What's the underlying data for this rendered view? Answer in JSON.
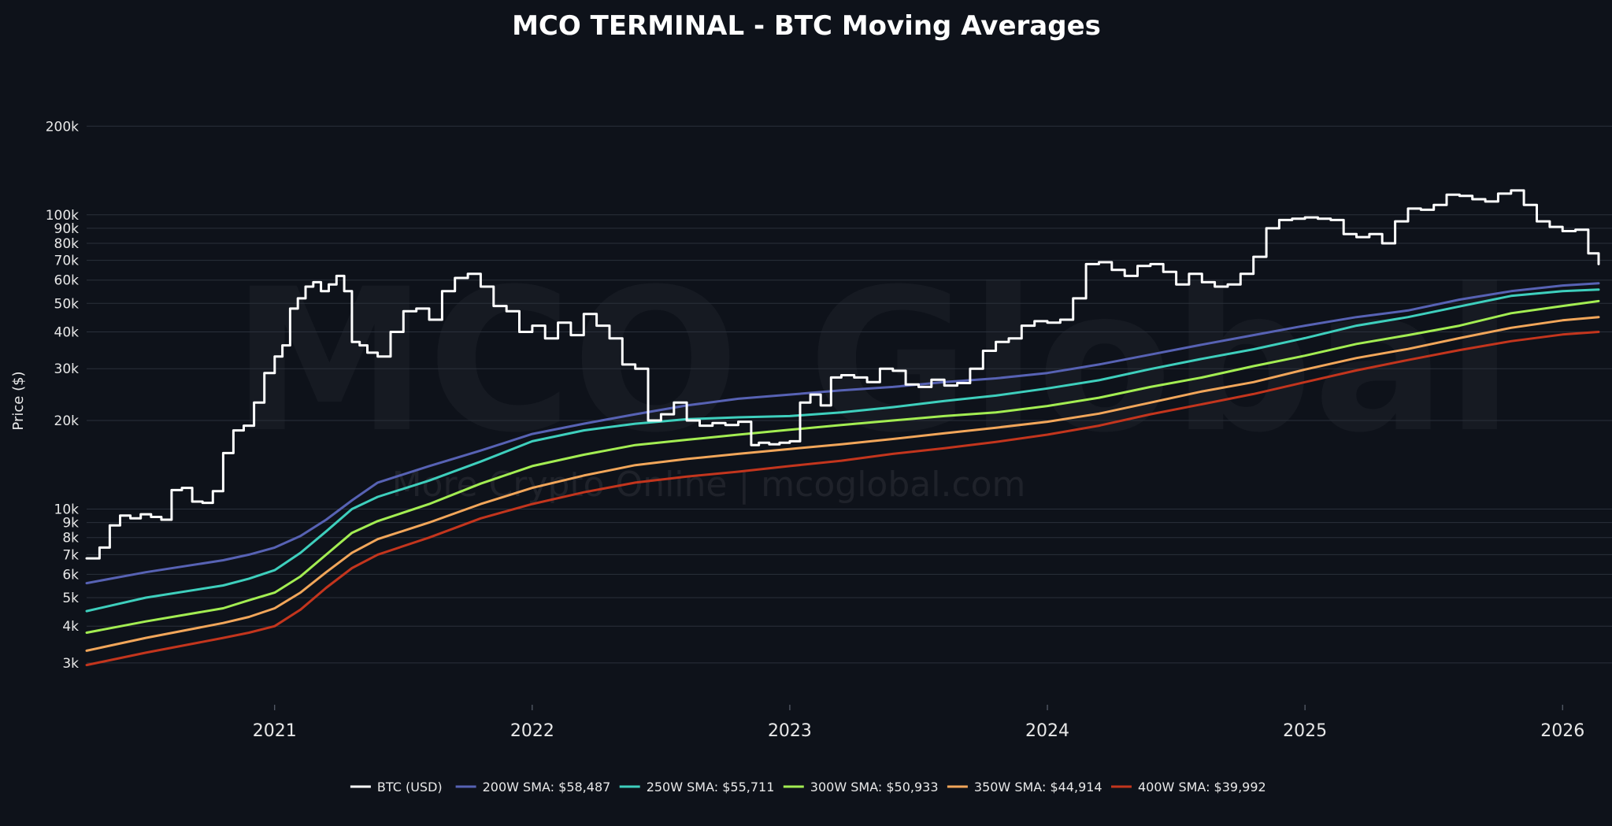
{
  "chart_data": {
    "type": "line",
    "title": "MCO TERMINAL - BTC Moving Averages",
    "xlabel": "",
    "ylabel": "Price ($)",
    "yscale": "log",
    "ylim": [
      2300,
      290000
    ],
    "xlim": [
      2020.27,
      2026.14
    ],
    "x_ticks": [
      2021,
      2022,
      2023,
      2024,
      2025,
      2026
    ],
    "x_tick_labels": [
      "2021",
      "2022",
      "2023",
      "2024",
      "2025",
      "2026"
    ],
    "y_ticks": [
      3000,
      4000,
      5000,
      6000,
      7000,
      8000,
      9000,
      10000,
      20000,
      30000,
      40000,
      50000,
      60000,
      70000,
      80000,
      90000,
      100000,
      200000
    ],
    "y_tick_labels": [
      "3k",
      "4k",
      "5k",
      "6k",
      "7k",
      "8k",
      "9k",
      "10k",
      "20k",
      "30k",
      "40k",
      "50k",
      "60k",
      "70k",
      "80k",
      "90k",
      "100k",
      "200k"
    ],
    "watermark": {
      "main": "MCO Global",
      "sub": "More Crypto Online  |  mcoglobal.com"
    },
    "series": [
      {
        "name": "BTC (USD)",
        "color": "#ffffff",
        "x": [
          2020.27,
          2020.32,
          2020.36,
          2020.4,
          2020.44,
          2020.48,
          2020.52,
          2020.56,
          2020.6,
          2020.64,
          2020.68,
          2020.72,
          2020.76,
          2020.8,
          2020.84,
          2020.88,
          2020.92,
          2020.96,
          2021.0,
          2021.03,
          2021.06,
          2021.09,
          2021.12,
          2021.15,
          2021.18,
          2021.21,
          2021.24,
          2021.27,
          2021.3,
          2021.33,
          2021.36,
          2021.4,
          2021.45,
          2021.5,
          2021.55,
          2021.6,
          2021.65,
          2021.7,
          2021.75,
          2021.8,
          2021.85,
          2021.9,
          2021.95,
          2022.0,
          2022.05,
          2022.1,
          2022.15,
          2022.2,
          2022.25,
          2022.3,
          2022.35,
          2022.4,
          2022.45,
          2022.5,
          2022.55,
          2022.6,
          2022.65,
          2022.7,
          2022.75,
          2022.8,
          2022.85,
          2022.88,
          2022.92,
          2022.96,
          2023.0,
          2023.04,
          2023.08,
          2023.12,
          2023.16,
          2023.2,
          2023.25,
          2023.3,
          2023.35,
          2023.4,
          2023.45,
          2023.5,
          2023.55,
          2023.6,
          2023.65,
          2023.7,
          2023.75,
          2023.8,
          2023.85,
          2023.9,
          2023.95,
          2024.0,
          2024.05,
          2024.1,
          2024.15,
          2024.2,
          2024.25,
          2024.3,
          2024.35,
          2024.4,
          2024.45,
          2024.5,
          2024.55,
          2024.6,
          2024.65,
          2024.7,
          2024.75,
          2024.8,
          2024.85,
          2024.9,
          2024.95,
          2025.0,
          2025.05,
          2025.1,
          2025.15,
          2025.2,
          2025.25,
          2025.3,
          2025.35,
          2025.4,
          2025.45,
          2025.5,
          2025.55,
          2025.6,
          2025.65,
          2025.7,
          2025.75,
          2025.8,
          2025.85,
          2025.9,
          2025.95,
          2026.0,
          2026.05,
          2026.1,
          2026.14
        ],
        "values": [
          6800,
          7400,
          8800,
          9500,
          9300,
          9600,
          9400,
          9200,
          11600,
          11800,
          10600,
          10500,
          11500,
          15500,
          18500,
          19200,
          23000,
          29000,
          33000,
          36000,
          48000,
          52000,
          57000,
          59000,
          55000,
          58000,
          62000,
          55000,
          37000,
          36000,
          34000,
          33000,
          40000,
          47000,
          48000,
          44000,
          55000,
          61000,
          63000,
          57000,
          49000,
          47000,
          40000,
          42000,
          38000,
          43000,
          39000,
          46000,
          42000,
          38000,
          31000,
          30000,
          20000,
          21000,
          23000,
          20000,
          19200,
          19600,
          19300,
          19800,
          16500,
          16800,
          16600,
          16800,
          17000,
          23000,
          24500,
          22500,
          28000,
          28500,
          28000,
          27000,
          30000,
          29500,
          26500,
          26000,
          27500,
          26300,
          26800,
          30000,
          34500,
          37000,
          38000,
          42000,
          43500,
          43000,
          44000,
          52000,
          68000,
          69000,
          65000,
          62000,
          67000,
          68000,
          64000,
          58000,
          63000,
          59000,
          57000,
          58000,
          63000,
          72000,
          90000,
          96000,
          97000,
          98000,
          97000,
          96000,
          86000,
          84000,
          86000,
          80000,
          95000,
          105000,
          104000,
          108000,
          117000,
          116000,
          113000,
          111000,
          118000,
          121000,
          108000,
          95000,
          91000,
          88000,
          89000,
          74000,
          68000
        ],
        "stroke_width": 3
      },
      {
        "name": "200W SMA: $58,487",
        "color": "#5762b4",
        "x": [
          2020.27,
          2020.5,
          2020.8,
          2020.9,
          2021.0,
          2021.1,
          2021.2,
          2021.3,
          2021.4,
          2021.6,
          2021.8,
          2022.0,
          2022.2,
          2022.4,
          2022.6,
          2022.8,
          2023.0,
          2023.2,
          2023.4,
          2023.6,
          2023.8,
          2024.0,
          2024.2,
          2024.4,
          2024.6,
          2024.8,
          2025.0,
          2025.2,
          2025.4,
          2025.6,
          2025.8,
          2026.0,
          2026.14
        ],
        "values": [
          5600,
          6100,
          6700,
          7000,
          7400,
          8100,
          9200,
          10700,
          12300,
          14000,
          15800,
          18000,
          19500,
          21000,
          22500,
          23700,
          24500,
          25300,
          26000,
          27000,
          27800,
          29000,
          31000,
          33500,
          36200,
          39000,
          42000,
          44900,
          47300,
          51500,
          55000,
          57500,
          58500
        ],
        "stroke_width": 3
      },
      {
        "name": "250W SMA: $55,711",
        "color": "#3ecfbd",
        "x": [
          2020.27,
          2020.5,
          2020.8,
          2020.9,
          2021.0,
          2021.1,
          2021.2,
          2021.3,
          2021.4,
          2021.6,
          2021.8,
          2022.0,
          2022.2,
          2022.4,
          2022.6,
          2022.8,
          2023.0,
          2023.2,
          2023.4,
          2023.6,
          2023.8,
          2024.0,
          2024.2,
          2024.4,
          2024.6,
          2024.8,
          2025.0,
          2025.2,
          2025.4,
          2025.6,
          2025.8,
          2026.0,
          2026.14
        ],
        "values": [
          4500,
          5000,
          5500,
          5800,
          6200,
          7100,
          8400,
          10000,
          11000,
          12500,
          14500,
          17000,
          18500,
          19500,
          20200,
          20500,
          20700,
          21300,
          22200,
          23300,
          24300,
          25700,
          27400,
          29900,
          32400,
          34900,
          38100,
          42000,
          44900,
          48800,
          53000,
          55000,
          55700
        ],
        "stroke_width": 3
      },
      {
        "name": "300W SMA: $50,933",
        "color": "#a3ed52",
        "x": [
          2020.27,
          2020.5,
          2020.8,
          2020.9,
          2021.0,
          2021.1,
          2021.2,
          2021.3,
          2021.4,
          2021.6,
          2021.8,
          2022.0,
          2022.2,
          2022.4,
          2022.6,
          2022.8,
          2023.0,
          2023.2,
          2023.4,
          2023.6,
          2023.8,
          2024.0,
          2024.2,
          2024.4,
          2024.6,
          2024.8,
          2025.0,
          2025.2,
          2025.4,
          2025.6,
          2025.8,
          2026.0,
          2026.14
        ],
        "values": [
          3800,
          4150,
          4600,
          4900,
          5200,
          5900,
          7000,
          8300,
          9100,
          10400,
          12200,
          14000,
          15300,
          16500,
          17200,
          17900,
          18600,
          19300,
          20000,
          20700,
          21300,
          22400,
          23900,
          26000,
          28000,
          30600,
          33200,
          36400,
          39000,
          42000,
          46300,
          49000,
          50900
        ],
        "stroke_width": 3
      },
      {
        "name": "350W SMA: $44,914",
        "color": "#f2a65a",
        "x": [
          2020.27,
          2020.5,
          2020.8,
          2020.9,
          2021.0,
          2021.1,
          2021.2,
          2021.3,
          2021.4,
          2021.6,
          2021.8,
          2022.0,
          2022.2,
          2022.4,
          2022.6,
          2022.8,
          2023.0,
          2023.2,
          2023.4,
          2023.6,
          2023.8,
          2024.0,
          2024.2,
          2024.4,
          2024.6,
          2024.8,
          2025.0,
          2025.2,
          2025.4,
          2025.6,
          2025.8,
          2026.0,
          2026.14
        ],
        "values": [
          3300,
          3650,
          4100,
          4300,
          4600,
          5200,
          6100,
          7100,
          7900,
          9000,
          10400,
          11800,
          13000,
          14100,
          14800,
          15400,
          16000,
          16600,
          17300,
          18100,
          18900,
          19800,
          21100,
          23000,
          25100,
          27000,
          29800,
          32600,
          35000,
          38100,
          41300,
          43800,
          44900
        ],
        "stroke_width": 3
      },
      {
        "name": "400W SMA: $39,992",
        "color": "#c3351d",
        "x": [
          2020.27,
          2020.5,
          2020.8,
          2020.9,
          2021.0,
          2021.1,
          2021.2,
          2021.3,
          2021.4,
          2021.6,
          2021.8,
          2022.0,
          2022.2,
          2022.4,
          2022.6,
          2022.8,
          2023.0,
          2023.2,
          2023.4,
          2023.6,
          2023.8,
          2024.0,
          2024.2,
          2024.4,
          2024.6,
          2024.8,
          2025.0,
          2025.2,
          2025.4,
          2025.6,
          2025.8,
          2026.0,
          2026.14
        ],
        "values": [
          2950,
          3250,
          3650,
          3800,
          4000,
          4550,
          5400,
          6300,
          7000,
          8000,
          9300,
          10400,
          11400,
          12300,
          12900,
          13400,
          14000,
          14600,
          15400,
          16100,
          16900,
          17900,
          19200,
          21000,
          22700,
          24600,
          27000,
          29600,
          32100,
          34700,
          37200,
          39200,
          40000
        ],
        "stroke_width": 3
      }
    ],
    "legend": {
      "placement": "bottom-center",
      "entries": [
        "BTC (USD)",
        "200W SMA: $58,487",
        "250W SMA: $55,711",
        "300W SMA: $50,933",
        "350W SMA: $44,914",
        "400W SMA: $39,992"
      ]
    }
  }
}
